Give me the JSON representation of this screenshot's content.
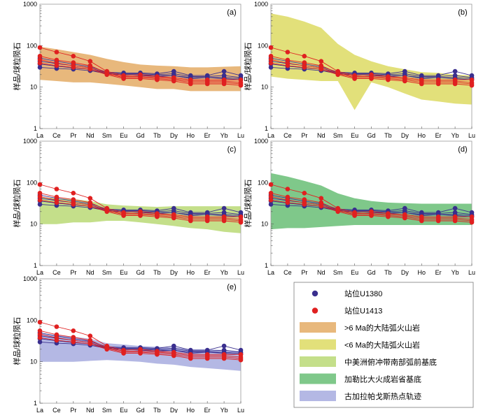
{
  "elements": [
    "La",
    "Ce",
    "Pr",
    "Nd",
    "Sm",
    "Eu",
    "Gd",
    "Tb",
    "Dy",
    "Ho",
    "Er",
    "Yb",
    "Lu"
  ],
  "ylabel": "样品/球粒陨石",
  "y_ticks": [
    "1",
    "10",
    "100",
    "1000"
  ],
  "ylim": [
    1,
    1000
  ],
  "colors": {
    "u1380": "#3a2f8e",
    "u1413": "#e02020",
    "envelope_gt6": "#e8b87c",
    "envelope_lt6": "#e2e07a",
    "envelope_cam": "#c4df8a",
    "envelope_gal": "#7fc88a",
    "envelope_hot": "#b4b8e4"
  },
  "legend": [
    {
      "key": "u1380",
      "kind": "marker",
      "label": "站位U1380"
    },
    {
      "key": "u1413",
      "kind": "marker",
      "label": "站位U1413"
    },
    {
      "key": "gt6",
      "kind": "patch",
      "label": ">6 Ma的大陆弧火山岩"
    },
    {
      "key": "lt6",
      "kind": "patch",
      "label": "<6 Ma的大陆弧火山岩"
    },
    {
      "key": "cam",
      "kind": "patch",
      "label": "中美洲俯冲带南部弧前基底"
    },
    {
      "key": "gal",
      "kind": "patch",
      "label": "加勒比大火成岩省基底"
    },
    {
      "key": "hot",
      "kind": "patch",
      "label": "古加拉帕戈斯热点轨迹"
    }
  ],
  "chart_data": [
    {
      "panel": "a",
      "label": "(a)",
      "type": "line",
      "yscale": "log",
      "envelope": {
        "key": "gt6",
        "name": ">6 Ma的大陆弧火山岩",
        "upper": [
          95,
          82,
          70,
          60,
          48,
          40,
          35,
          33,
          32,
          30,
          30,
          31,
          32
        ],
        "lower": [
          15,
          14,
          13,
          13,
          12,
          11,
          10,
          9,
          9,
          8,
          8,
          8,
          8
        ]
      }
    },
    {
      "panel": "b",
      "label": "(b)",
      "type": "line",
      "yscale": "log",
      "envelope": {
        "key": "lt6",
        "name": "<6 Ma的大陆弧火山岩",
        "upper": [
          600,
          500,
          380,
          270,
          110,
          60,
          42,
          32,
          27,
          23,
          22,
          20,
          19
        ],
        "lower": [
          18,
          16,
          15,
          14,
          14,
          2.8,
          13,
          10,
          7,
          5,
          4.5,
          4,
          3.8
        ]
      }
    },
    {
      "panel": "c",
      "label": "(c)",
      "type": "line",
      "yscale": "log",
      "envelope": {
        "key": "cam",
        "name": "中美洲俯冲带南部弧前基底",
        "upper": [
          45,
          42,
          40,
          36,
          30,
          28,
          27,
          26,
          27,
          27,
          27,
          27,
          27
        ],
        "lower": [
          10,
          10,
          11,
          11,
          12,
          12,
          11,
          10,
          9,
          8,
          7.5,
          6.5,
          6
        ]
      }
    },
    {
      "panel": "d",
      "label": "(d)",
      "type": "line",
      "yscale": "log",
      "envelope": {
        "key": "gal",
        "name": "加勒比大火成岩省基底",
        "upper": [
          170,
          140,
          110,
          85,
          55,
          42,
          36,
          33,
          32,
          31,
          31,
          31,
          31
        ],
        "lower": [
          7.5,
          8,
          8,
          8.5,
          9,
          9.5,
          9.5,
          9.5,
          9.5,
          9.5,
          9.5,
          9.5,
          9.5
        ]
      }
    },
    {
      "panel": "e",
      "label": "(e)",
      "type": "line",
      "yscale": "log",
      "envelope": {
        "key": "hot",
        "name": "古加拉帕戈斯热点轨迹",
        "upper": [
          48,
          44,
          40,
          36,
          28,
          26,
          24,
          23,
          22,
          20,
          20,
          19,
          18
        ],
        "lower": [
          10,
          10,
          10,
          10.5,
          11,
          10.5,
          10,
          9,
          8.5,
          7.5,
          7,
          6.5,
          6
        ]
      }
    }
  ],
  "samples": {
    "U1380": {
      "name": "站位U1380",
      "series": [
        [
          50,
          42,
          36,
          31,
          23,
          22,
          22,
          21,
          24,
          19,
          19,
          24,
          19
        ],
        [
          42,
          37,
          33,
          29,
          22,
          21,
          21,
          20,
          21,
          18,
          18,
          19,
          17
        ],
        [
          36,
          32,
          29,
          27,
          21,
          20,
          20,
          19,
          19,
          17,
          17,
          17,
          16
        ],
        [
          30,
          28,
          27,
          25,
          21,
          20,
          19,
          18,
          19,
          16,
          17,
          16,
          15
        ]
      ]
    },
    "U1413": {
      "name": "站位U1413",
      "series": [
        [
          90,
          70,
          56,
          42,
          24,
          19,
          20,
          18,
          17,
          15,
          15,
          15,
          15
        ],
        [
          56,
          45,
          39,
          33,
          22,
          18,
          18,
          17,
          16,
          14,
          14,
          14,
          13
        ],
        [
          46,
          38,
          33,
          29,
          21,
          17,
          17,
          16,
          15,
          13,
          13,
          13,
          12
        ],
        [
          38,
          33,
          30,
          27,
          20,
          16,
          16,
          15,
          14,
          12,
          12,
          12,
          11
        ]
      ]
    }
  }
}
